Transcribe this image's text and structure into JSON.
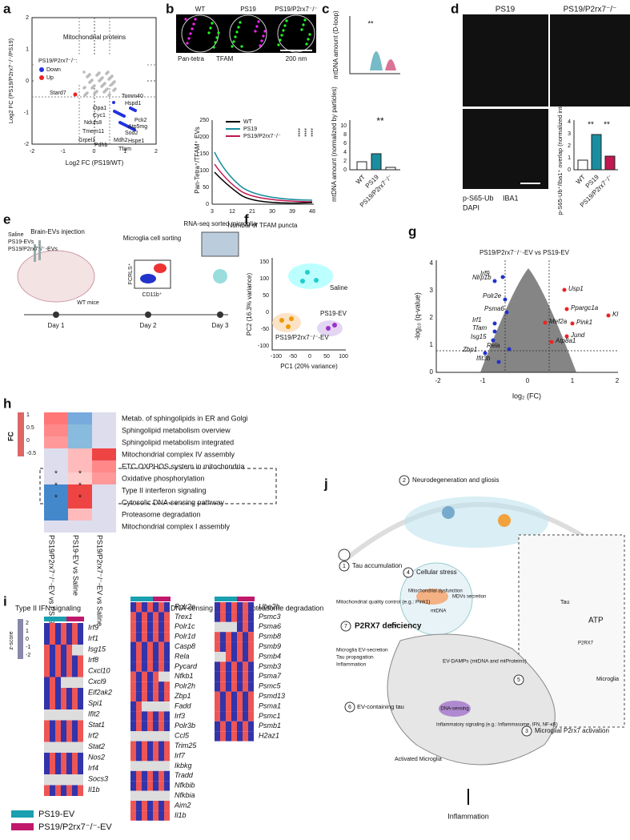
{
  "letters": [
    "a",
    "b",
    "c",
    "d",
    "e",
    "f",
    "g",
    "h",
    "i",
    "j"
  ],
  "a": {
    "title": "Mitochondrial proteins",
    "legend_title": "PS19/P2rx7⁻/⁻:",
    "legend": [
      "Down",
      "Up"
    ],
    "xlabel": "Log2 FC (PS19/WT)",
    "ylabel": "Log2 FC (PS19/P2rx7⁻/⁻/PS19)",
    "xticks": [
      "-2",
      "-1",
      "0",
      "1",
      "2"
    ],
    "yticks": [
      "2",
      "1",
      "0",
      "-1",
      "-2"
    ],
    "proteins": [
      "Stard7",
      "Tomm40",
      "Hspd1",
      "Opa1",
      "Cyc1",
      "Pck2",
      "Ndufs8",
      "Atp5mg",
      "Tmem11",
      "Sod2",
      "Grpel1",
      "Pdhb",
      "Mdh2",
      "Hspe1",
      "Tfam"
    ]
  },
  "b": {
    "groups": [
      "WT",
      "PS19",
      "PS19/P2rx7⁻/⁻"
    ],
    "stains": [
      "Pan-tetra",
      "TFAM"
    ],
    "scale": "200 nm",
    "legend": [
      "WT",
      "PS19",
      "PS19/P2rx7⁻/⁻"
    ],
    "sig": [
      "****",
      "****",
      "****"
    ],
    "ylabel": "Pan-Tetra⁺/TFAM⁺ EVs",
    "xlabel": "Number of TFAM puncta",
    "yticks": [
      "0",
      "50",
      "100",
      "150",
      "200",
      "250"
    ],
    "xticks": [
      "3",
      "12",
      "21",
      "30",
      "39",
      "48"
    ]
  },
  "c": {
    "top_ylabel": "mtDNA amount (D-loop)",
    "top_sig": "**",
    "bottom_ylabel": "mtDNA amount (normalized by particles)",
    "bottom_yticks": [
      "0",
      "2",
      "4",
      "6",
      "8",
      "10"
    ],
    "bottom_sig": "**",
    "groups": [
      "WT",
      "PS19",
      "PS19/P2rx7⁻/⁻"
    ]
  },
  "d": {
    "images": [
      "PS19",
      "PS19/P2rx7⁻/⁻",
      "WT"
    ],
    "scale": "5 μm",
    "stains": [
      "p-S65-Ub",
      "IBA1",
      "DAPI"
    ],
    "ylabel": "p-S65-Ub⁺/Iba1⁺ overlap (normalized intensity)",
    "yticks": [
      "0",
      "1",
      "2",
      "3",
      "4"
    ],
    "sig": [
      "**",
      "**"
    ],
    "groups": [
      "WT",
      "PS19",
      "PS19/P2rx7⁻/⁻"
    ]
  },
  "e": {
    "treatments": [
      "Saline",
      "PS19-EVs",
      "PS19/P2rx7⁻/⁻-EVs"
    ],
    "steps": [
      "Brain-EVs injection",
      "Microglia cell sorting",
      "RNA-seq sorted microglia"
    ],
    "facs_y": "FCRLS⁺",
    "facs_x": "CD11b⁺",
    "mice": "WT mice",
    "days": [
      "Day 1",
      "Day 2",
      "Day 3"
    ]
  },
  "f": {
    "ylabel": "PC2 (16.3% variance)",
    "xlabel": "PC1 (20% variance)",
    "groups": [
      "Saline",
      "PS19-EV",
      "PS19/P2rx7⁻/⁻-EV"
    ],
    "xticks": [
      "-100",
      "-50",
      "0",
      "50",
      "100"
    ],
    "yticks": [
      "150",
      "100",
      "50",
      "0",
      "-50",
      "-100"
    ]
  },
  "g": {
    "title": "PS19/P2rx7⁻/⁻-EV vs PS19-EV",
    "ylabel": "-log₁₀ (q-value)",
    "xlabel": "log₂ (FC)",
    "xticks": [
      "-2",
      "-1",
      "0",
      "1",
      "2"
    ],
    "yticks": [
      "0",
      "1",
      "2",
      "3",
      "4"
    ],
    "down_genes": [
      "Nlrp1b",
      "Irf9",
      "Polr2e",
      "Psma6",
      "Irf1",
      "Tfam",
      "Isg15",
      "Rela",
      "Zbp1",
      "Ifit3b"
    ],
    "up_genes": [
      "Usp1",
      "Kl",
      "Ppargc1a",
      "Mef2a",
      "Pink1",
      "Jund",
      "Atp8a1"
    ]
  },
  "h": {
    "scale_title": "FC",
    "scale_ticks": [
      "1",
      "0.5",
      "0",
      "-0.5"
    ],
    "pathways": [
      "Metab. of sphingolipids in ER and Golgi",
      "Sphingolipid metabolism overview",
      "Sphingolipid metabolism integrated",
      "Mitochondrial complex IV assembly",
      "ETC OXPHOS system in mitochondria",
      "Oxidative phosphorylation",
      "Type II interferon signaling",
      "Cytosolic DNA-sensing pathway",
      "Proteasome degradation",
      "Mitochondrial complex I assembly"
    ],
    "comparisons": [
      "PS19/P2rx7⁻/⁻-EV vs PS19-EV",
      "PS19-EV vs Saline",
      "PS19/P2rx7⁻/⁻-EV vs Saline"
    ],
    "stars": [
      "*",
      "*",
      "*",
      "*",
      "*",
      "*"
    ]
  },
  "i": {
    "titles": [
      "Type II IFN signaling",
      "Cytosolic DNA-sensing",
      "Proteasome degradation"
    ],
    "scale_title": "z-score",
    "scale_ticks": [
      "2",
      "1",
      "0",
      "-1",
      "-2"
    ],
    "ifn_genes": [
      "Irf9",
      "Irf1",
      "Isg15",
      "Irf8",
      "Cxcl10",
      "Cxcl9",
      "Eif2ak2",
      "Spi1",
      "Ifit2",
      "Stat1",
      "Irf2",
      "Stat2",
      "Nos2",
      "Irf4",
      "Socs3",
      "Il1b"
    ],
    "dna_genes": [
      "Polr2e",
      "Trex1",
      "Polr1c",
      "Polr1d",
      "Casp8",
      "Rela",
      "Pycard",
      "Nfkb1",
      "Polr2h",
      "Zbp1",
      "Fadd",
      "Irf3",
      "Polr3b",
      "Ccl5",
      "Trim25",
      "Irf7",
      "Ikbkg",
      "Tradd",
      "Nfkbib",
      "Nfkbia",
      "Aim2",
      "Il1b"
    ],
    "proteasome_genes": [
      "Ube2b",
      "Psmc3",
      "Psma6",
      "Psmb8",
      "Psmb9",
      "Psmb4",
      "Psmb3",
      "Psma7",
      "Psmc5",
      "Psmd13",
      "Psma1",
      "Psmc1",
      "Psmb1",
      "H2az1"
    ],
    "legend": [
      "PS19-EV",
      "PS19/P2rx7⁻/⁻-EV"
    ]
  },
  "j": {
    "numbers": [
      "1",
      "2",
      "3",
      "4",
      "5",
      "6",
      "7"
    ],
    "tau_accumulation": "Tau accumulation",
    "neurodegeneration": "Neurodegeneration and gliosis",
    "p2rx7_activation": "Microglial P2rx7 activation",
    "cellular_stress": "Cellular stress",
    "mito_dysfunction": "Mitochondrial dysfunction",
    "mdvs": "MDVs secretion",
    "mtdna": "mtDNA",
    "ev": "EV",
    "quality_control": "Mitochondrial quality control (e.g.: Pink1)",
    "deficiency": "P2RX7 deficiency",
    "down_effects": [
      "Microglia EV-secretion",
      "Tau propagation",
      "Inflammation"
    ],
    "ev_damps": "EV-DAMPs (mtDNA and mtProteins)",
    "ev_tau": "EV-containing tau",
    "dna_sensing": "DNA-sensing",
    "inflammatory_signaling": "Inflammatory signaling (e.g.: Inflammasome, IFN, NF-κB)",
    "activated_microglia": "Activated Microglia",
    "inflammation": "Inflammation",
    "tau": "Tau",
    "atp": "ATP",
    "p2rx7": "P2RX7",
    "microglia": "Microglia"
  }
}
